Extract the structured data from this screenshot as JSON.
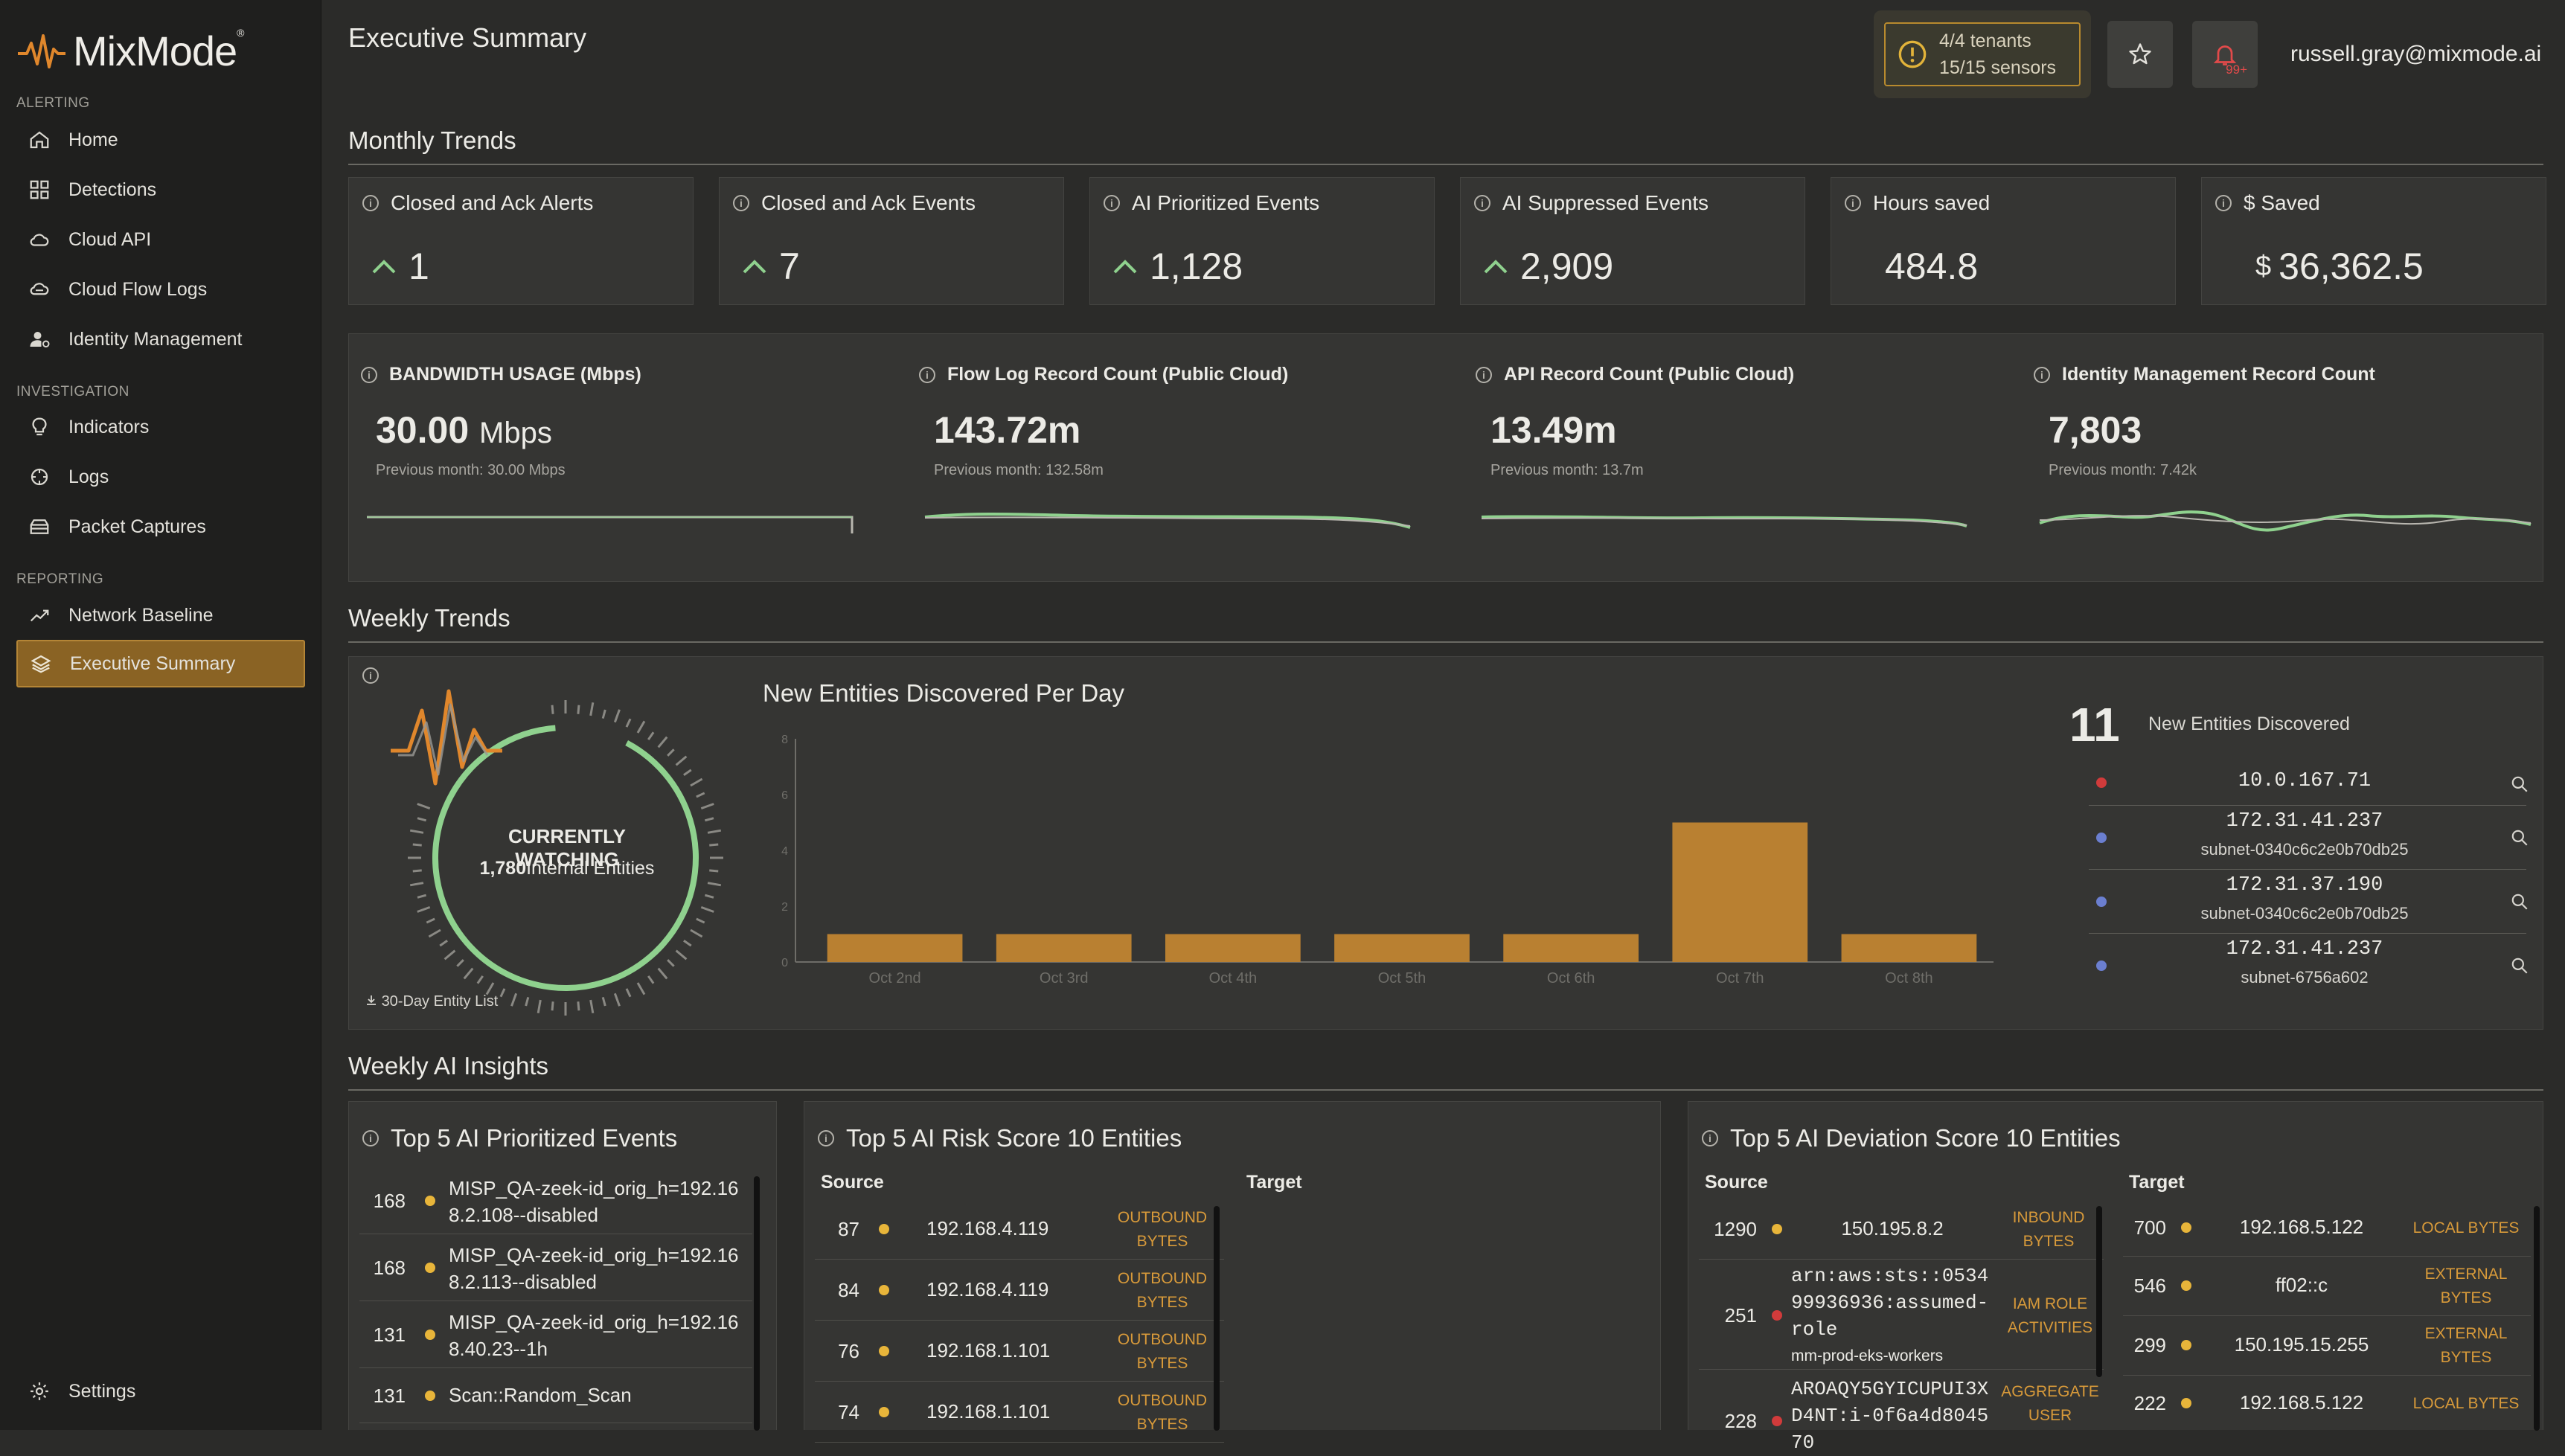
{
  "app": {
    "logo_text": "MixMode",
    "page_title": "Executive Summary",
    "user_email": "russell.gray@mixmode.ai",
    "tenants": "4/4 tenants",
    "sensors": "15/15 sensors",
    "notifications_badge": "99+"
  },
  "sidebar": {
    "sections": [
      {
        "label": "ALERTING",
        "items": [
          {
            "label": "Home",
            "icon": "home-icon"
          },
          {
            "label": "Detections",
            "icon": "grid-icon"
          },
          {
            "label": "Cloud API",
            "icon": "cloud-icon"
          },
          {
            "label": "Cloud Flow Logs",
            "icon": "cloud-flow-icon"
          },
          {
            "label": "Identity Management",
            "icon": "user-gear-icon"
          }
        ]
      },
      {
        "label": "INVESTIGATION",
        "items": [
          {
            "label": "Indicators",
            "icon": "lightbulb-icon"
          },
          {
            "label": "Logs",
            "icon": "logs-icon"
          },
          {
            "label": "Packet Captures",
            "icon": "packet-icon"
          }
        ]
      },
      {
        "label": "REPORTING",
        "items": [
          {
            "label": "Network Baseline",
            "icon": "trend-icon"
          },
          {
            "label": "Executive Summary",
            "icon": "layers-icon",
            "active": true
          }
        ]
      }
    ],
    "settings_label": "Settings"
  },
  "monthly": {
    "title": "Monthly Trends",
    "kpis": [
      {
        "title": "Closed and Ack Alerts",
        "value": "1",
        "trend": "up"
      },
      {
        "title": "Closed and Ack Events",
        "value": "7",
        "trend": "up"
      },
      {
        "title": "AI Prioritized Events",
        "value": "1,128",
        "trend": "up"
      },
      {
        "title": "AI Suppressed Events",
        "value": "2,909",
        "trend": "up"
      },
      {
        "title": "Hours saved",
        "value": "484.8",
        "trend": ""
      },
      {
        "title": "$ Saved",
        "value": "36,362.5",
        "currency": "$",
        "trend": ""
      }
    ],
    "usage": [
      {
        "title": "BANDWIDTH USAGE (Mbps)",
        "value": "30.00",
        "unit": "Mbps",
        "previous": "Previous month: 30.00 Mbps"
      },
      {
        "title": "Flow Log Record Count (Public Cloud)",
        "value": "143.72m",
        "unit": "",
        "previous": "Previous month: 132.58m"
      },
      {
        "title": "API Record Count (Public Cloud)",
        "value": "13.49m",
        "unit": "",
        "previous": "Previous month: 13.7m"
      },
      {
        "title": "Identity Management Record Count",
        "value": "7,803",
        "unit": "",
        "previous": "Previous month: 7.42k"
      }
    ]
  },
  "weekly": {
    "title": "Weekly Trends",
    "watching_title": "CURRENTLY WATCHING",
    "watching_count": "1,780",
    "watching_label": "Internal Entities",
    "entity_list_link": "30-Day Entity List",
    "chart_title": "New Entities Discovered Per Day",
    "new_entities_count": "11",
    "new_entities_label": "New Entities Discovered",
    "entities": [
      {
        "ip": "10.0.167.71",
        "subnet": "",
        "color": "#d13b3b"
      },
      {
        "ip": "172.31.41.237",
        "subnet": "subnet-0340c6c2e0b70db25",
        "color": "#6b7fd0"
      },
      {
        "ip": "172.31.37.190",
        "subnet": "subnet-0340c6c2e0b70db25",
        "color": "#6b7fd0"
      },
      {
        "ip": "172.31.41.237",
        "subnet": "subnet-6756a602",
        "color": "#6b7fd0"
      }
    ]
  },
  "chart_data": {
    "type": "bar",
    "categories": [
      "Oct 2nd",
      "Oct 3rd",
      "Oct 4th",
      "Oct 5th",
      "Oct 6th",
      "Oct 7th",
      "Oct 8th"
    ],
    "values": [
      1,
      1,
      1,
      1,
      1,
      5,
      1
    ],
    "title": "New Entities Discovered Per Day",
    "xlabel": "",
    "ylabel": "",
    "ylim": [
      0,
      8
    ],
    "yticks": [
      "0",
      "2",
      "4",
      "6",
      "8"
    ],
    "bar_color": "#b98031"
  },
  "ai_insights": {
    "title": "Weekly AI Insights",
    "prioritized": {
      "title": "Top 5 AI Prioritized Events",
      "rows": [
        {
          "count": "168",
          "text": "MISP_QA-zeek-id_orig_h=192.168.2.108--disabled"
        },
        {
          "count": "168",
          "text": "MISP_QA-zeek-id_orig_h=192.168.2.113--disabled"
        },
        {
          "count": "131",
          "text": "MISP_QA-zeek-id_orig_h=192.168.40.23--1h"
        },
        {
          "count": "131",
          "text": "Scan::Random_Scan"
        }
      ]
    },
    "risk": {
      "title": "Top 5 AI Risk Score 10 Entities",
      "source_label": "Source",
      "target_label": "Target",
      "rows": [
        {
          "score": "87",
          "ip": "192.168.4.119",
          "tag": "OUTBOUND BYTES"
        },
        {
          "score": "84",
          "ip": "192.168.4.119",
          "tag": "OUTBOUND BYTES"
        },
        {
          "score": "76",
          "ip": "192.168.1.101",
          "tag": "OUTBOUND BYTES"
        },
        {
          "score": "74",
          "ip": "192.168.1.101",
          "tag": "OUTBOUND BYTES"
        }
      ]
    },
    "deviation": {
      "title": "Top 5 AI Deviation Score 10 Entities",
      "source_label": "Source",
      "target_label": "Target",
      "source_rows": [
        {
          "score": "1290",
          "ip": "150.195.8.2",
          "sub": "",
          "tag": "INBOUND BYTES",
          "color": "#e8b53a"
        },
        {
          "score": "251",
          "ip": "arn:aws:sts::053499936936:assumed-role",
          "sub": "mm-prod-eks-workers",
          "tag": "IAM ROLE ACTIVITIES",
          "color": "#d13b3b"
        },
        {
          "score": "228",
          "ip": "AROAQY5GYICUPUI3XD4NT:i-0f6a4d804570",
          "sub": "",
          "tag": "AGGREGATE USER",
          "color": "#d13b3b"
        }
      ],
      "target_rows": [
        {
          "score": "700",
          "ip": "192.168.5.122",
          "tag": "LOCAL BYTES"
        },
        {
          "score": "546",
          "ip": "ff02::c",
          "tag": "EXTERNAL BYTES"
        },
        {
          "score": "299",
          "ip": "150.195.15.255",
          "tag": "EXTERNAL BYTES"
        },
        {
          "score": "222",
          "ip": "192.168.5.122",
          "tag": "LOCAL BYTES"
        }
      ]
    }
  }
}
